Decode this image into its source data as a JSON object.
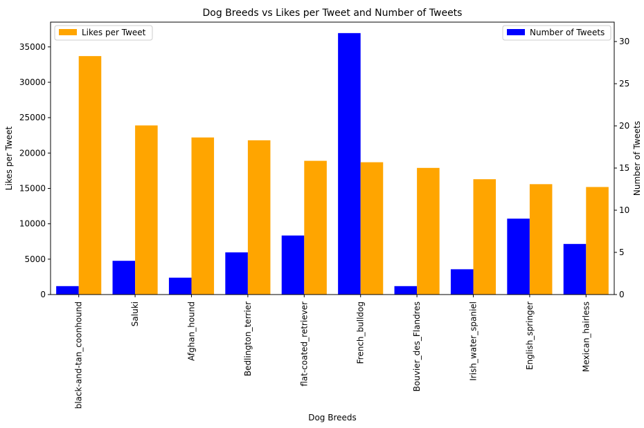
{
  "chart_data": {
    "type": "bar",
    "title": "Dog Breeds vs Likes per Tweet and Number of Tweets",
    "xlabel": "Dog Breeds",
    "ylabel_left": "Likes per Tweet",
    "ylabel_right": "Number of Tweets",
    "categories": [
      "black-and-tan_coonhound",
      "Saluki",
      "Afghan_hound",
      "Bedlington_terrier",
      "flat-coated_retriever",
      "French_bulldog",
      "Bouvier_des_Flandres",
      "Irish_water_spaniel",
      "English_springer",
      "Mexican_hairless"
    ],
    "series": [
      {
        "name": "Number of Tweets",
        "axis": "right",
        "color": "#0000ff",
        "values": [
          1,
          4,
          2,
          5,
          7,
          31,
          1,
          3,
          9,
          6
        ]
      },
      {
        "name": "Likes per Tweet",
        "axis": "left",
        "color": "#ffa500",
        "values": [
          33700,
          23900,
          22200,
          21800,
          18900,
          18700,
          17900,
          16300,
          15600,
          15200
        ]
      }
    ],
    "ylim_left": [
      0,
      38500
    ],
    "yticks_left": [
      0,
      5000,
      10000,
      15000,
      20000,
      25000,
      30000,
      35000
    ],
    "ylim_right": [
      0,
      32.3
    ],
    "yticks_right": [
      0,
      5,
      10,
      15,
      20,
      25,
      30
    ],
    "grid": false,
    "legend_left": {
      "placement": "top-left",
      "label": "Likes per Tweet"
    },
    "legend_right": {
      "placement": "top-right",
      "label": "Number of Tweets"
    }
  }
}
